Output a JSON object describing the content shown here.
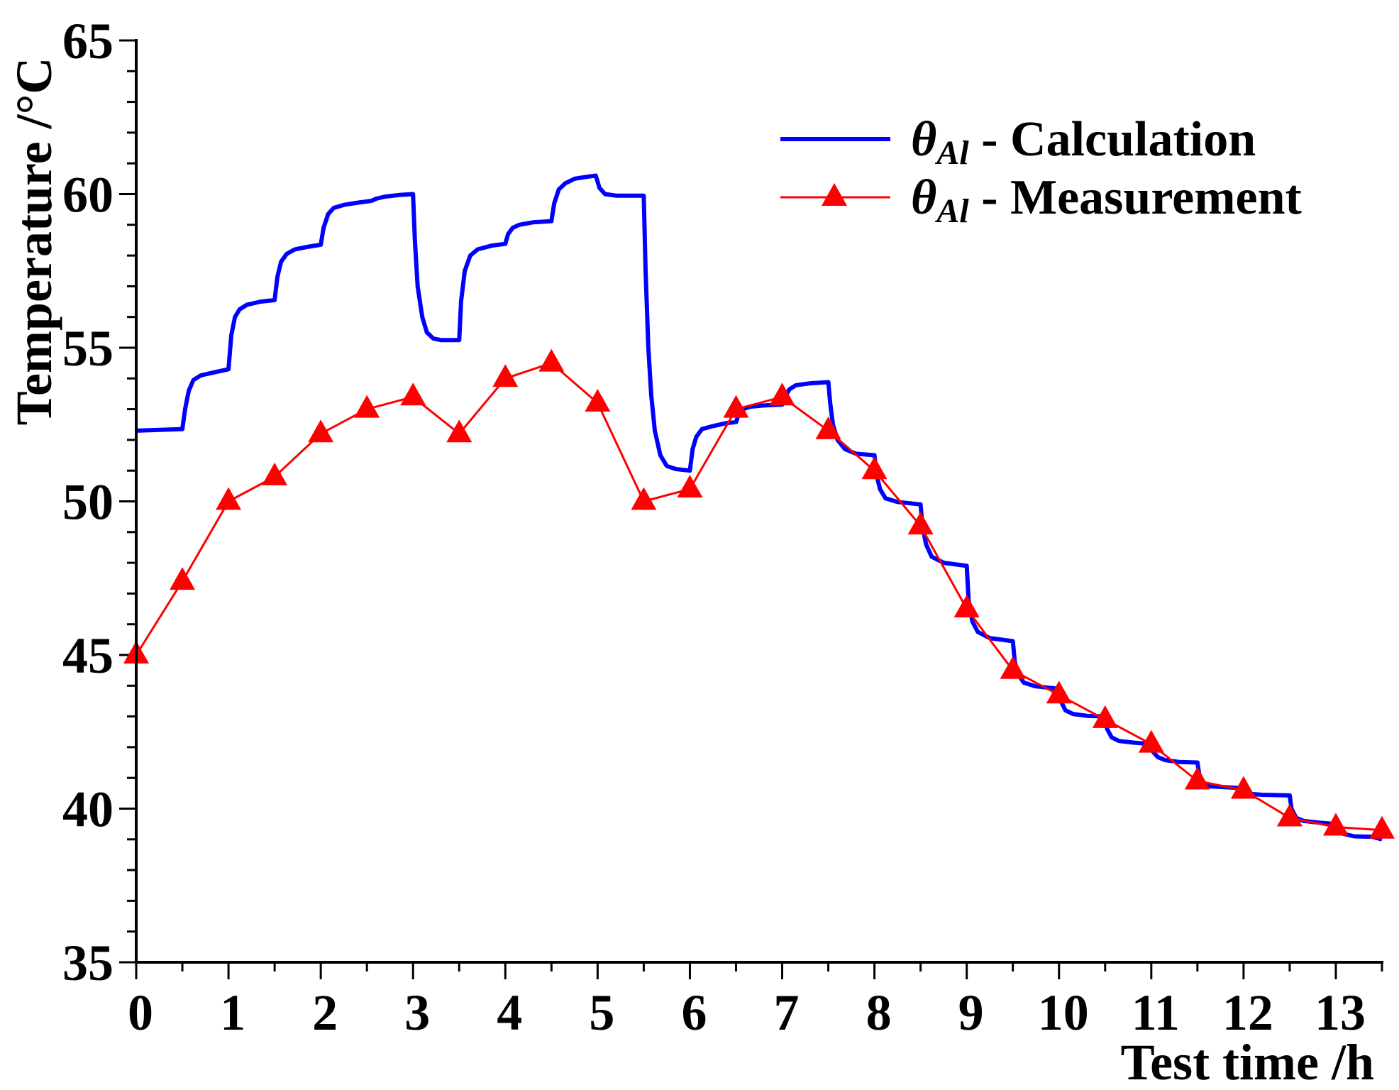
{
  "chart_data": {
    "type": "line",
    "title": "",
    "xlabel": "Test time /h",
    "ylabel": "Temperature /°C",
    "xlim": [
      0,
      13.5
    ],
    "ylim": [
      35,
      65
    ],
    "x_ticks": [
      0,
      1,
      2,
      3,
      4,
      5,
      6,
      7,
      8,
      9,
      10,
      11,
      12,
      13
    ],
    "x_minor_step": 0.5,
    "y_ticks": [
      35,
      40,
      45,
      50,
      55,
      60,
      65
    ],
    "y_minor_step": 1,
    "grid": false,
    "legend_position": "top-right",
    "series": [
      {
        "label_symbol": "θ",
        "label_subscript": "Al",
        "label_text": " - Calculation",
        "color": "#0000ff",
        "marker": "none",
        "x": [
          0,
          0.5,
          0.53,
          0.57,
          0.62,
          0.7,
          0.85,
          1.0,
          1.03,
          1.07,
          1.12,
          1.2,
          1.35,
          1.5,
          1.53,
          1.57,
          1.63,
          1.72,
          1.85,
          2.0,
          2.03,
          2.08,
          2.14,
          2.25,
          2.4,
          2.55,
          2.6,
          2.7,
          2.85,
          3.0,
          3.02,
          3.05,
          3.1,
          3.15,
          3.22,
          3.3,
          3.5,
          3.52,
          3.56,
          3.62,
          3.7,
          3.85,
          4.0,
          4.03,
          4.08,
          4.15,
          4.3,
          4.5,
          4.53,
          4.58,
          4.65,
          4.75,
          4.9,
          4.98,
          5.02,
          5.08,
          5.2,
          5.5,
          5.52,
          5.55,
          5.58,
          5.62,
          5.68,
          5.75,
          5.85,
          6.0,
          6.03,
          6.07,
          6.13,
          6.25,
          6.4,
          6.5,
          6.53,
          6.58,
          6.65,
          6.8,
          7.0,
          7.03,
          7.08,
          7.15,
          7.3,
          7.5,
          7.52,
          7.55,
          7.6,
          7.68,
          7.8,
          8.0,
          8.02,
          8.06,
          8.12,
          8.25,
          8.5,
          8.52,
          8.56,
          8.62,
          8.75,
          9.0,
          9.02,
          9.06,
          9.12,
          9.25,
          9.5,
          9.52,
          9.56,
          9.62,
          9.75,
          10.0,
          10.02,
          10.07,
          10.15,
          10.3,
          10.5,
          10.52,
          10.57,
          10.65,
          10.8,
          11.0,
          11.02,
          11.07,
          11.15,
          11.3,
          11.5,
          11.52,
          11.57,
          11.65,
          11.8,
          12.0,
          12.02,
          12.08,
          12.2,
          12.5,
          12.52,
          12.57,
          12.65,
          12.8,
          13.0,
          13.02,
          13.08,
          13.2,
          13.4,
          13.5
        ],
        "y": [
          52.3,
          52.35,
          53.0,
          53.6,
          53.95,
          54.1,
          54.2,
          54.3,
          55.4,
          56.0,
          56.25,
          56.4,
          56.5,
          56.55,
          57.3,
          57.8,
          58.05,
          58.2,
          58.28,
          58.35,
          58.9,
          59.35,
          59.55,
          59.65,
          59.72,
          59.78,
          59.85,
          59.92,
          59.97,
          60.0,
          58.5,
          57.0,
          56.0,
          55.5,
          55.3,
          55.25,
          55.25,
          56.5,
          57.5,
          58.0,
          58.2,
          58.32,
          58.38,
          58.7,
          58.9,
          59.0,
          59.08,
          59.12,
          59.7,
          60.15,
          60.35,
          60.5,
          60.57,
          60.6,
          60.2,
          60.0,
          59.95,
          59.95,
          57.5,
          55.0,
          53.5,
          52.3,
          51.5,
          51.15,
          51.05,
          51.0,
          51.7,
          52.1,
          52.35,
          52.45,
          52.55,
          52.58,
          52.85,
          53.0,
          53.08,
          53.12,
          53.15,
          53.4,
          53.65,
          53.78,
          53.84,
          53.88,
          53.2,
          52.5,
          52.0,
          51.7,
          51.55,
          51.5,
          50.9,
          50.4,
          50.1,
          49.98,
          49.9,
          49.2,
          48.6,
          48.2,
          48.0,
          47.9,
          46.8,
          46.1,
          45.75,
          45.55,
          45.45,
          44.8,
          44.35,
          44.1,
          43.98,
          43.9,
          43.5,
          43.2,
          43.08,
          43.02,
          43.0,
          42.6,
          42.32,
          42.2,
          42.15,
          42.1,
          41.85,
          41.68,
          41.58,
          41.52,
          41.5,
          41.1,
          40.82,
          40.72,
          40.7,
          40.66,
          40.55,
          40.48,
          40.45,
          40.43,
          40.0,
          39.7,
          39.6,
          39.55,
          39.5,
          39.3,
          39.18,
          39.1,
          39.08,
          39.0
        ]
      },
      {
        "label_symbol": "θ",
        "label_subscript": "Al",
        "label_text": " - Measurement",
        "color": "#ff0000",
        "marker": "triangle",
        "x": [
          0,
          0.5,
          1,
          1.5,
          2,
          2.5,
          3,
          3.5,
          4,
          4.5,
          5,
          5.5,
          6,
          6.5,
          7,
          7.5,
          8,
          8.5,
          9,
          9.5,
          10,
          10.5,
          11,
          11.5,
          12,
          12.5,
          13,
          13.5
        ],
        "y": [
          45.0,
          47.4,
          50.0,
          50.8,
          52.2,
          53.0,
          53.4,
          52.2,
          54.0,
          54.5,
          53.2,
          50.0,
          50.4,
          53.0,
          53.4,
          52.3,
          51.0,
          49.2,
          46.5,
          44.5,
          43.7,
          42.9,
          42.1,
          40.9,
          40.6,
          39.7,
          39.4,
          39.3
        ]
      }
    ]
  }
}
